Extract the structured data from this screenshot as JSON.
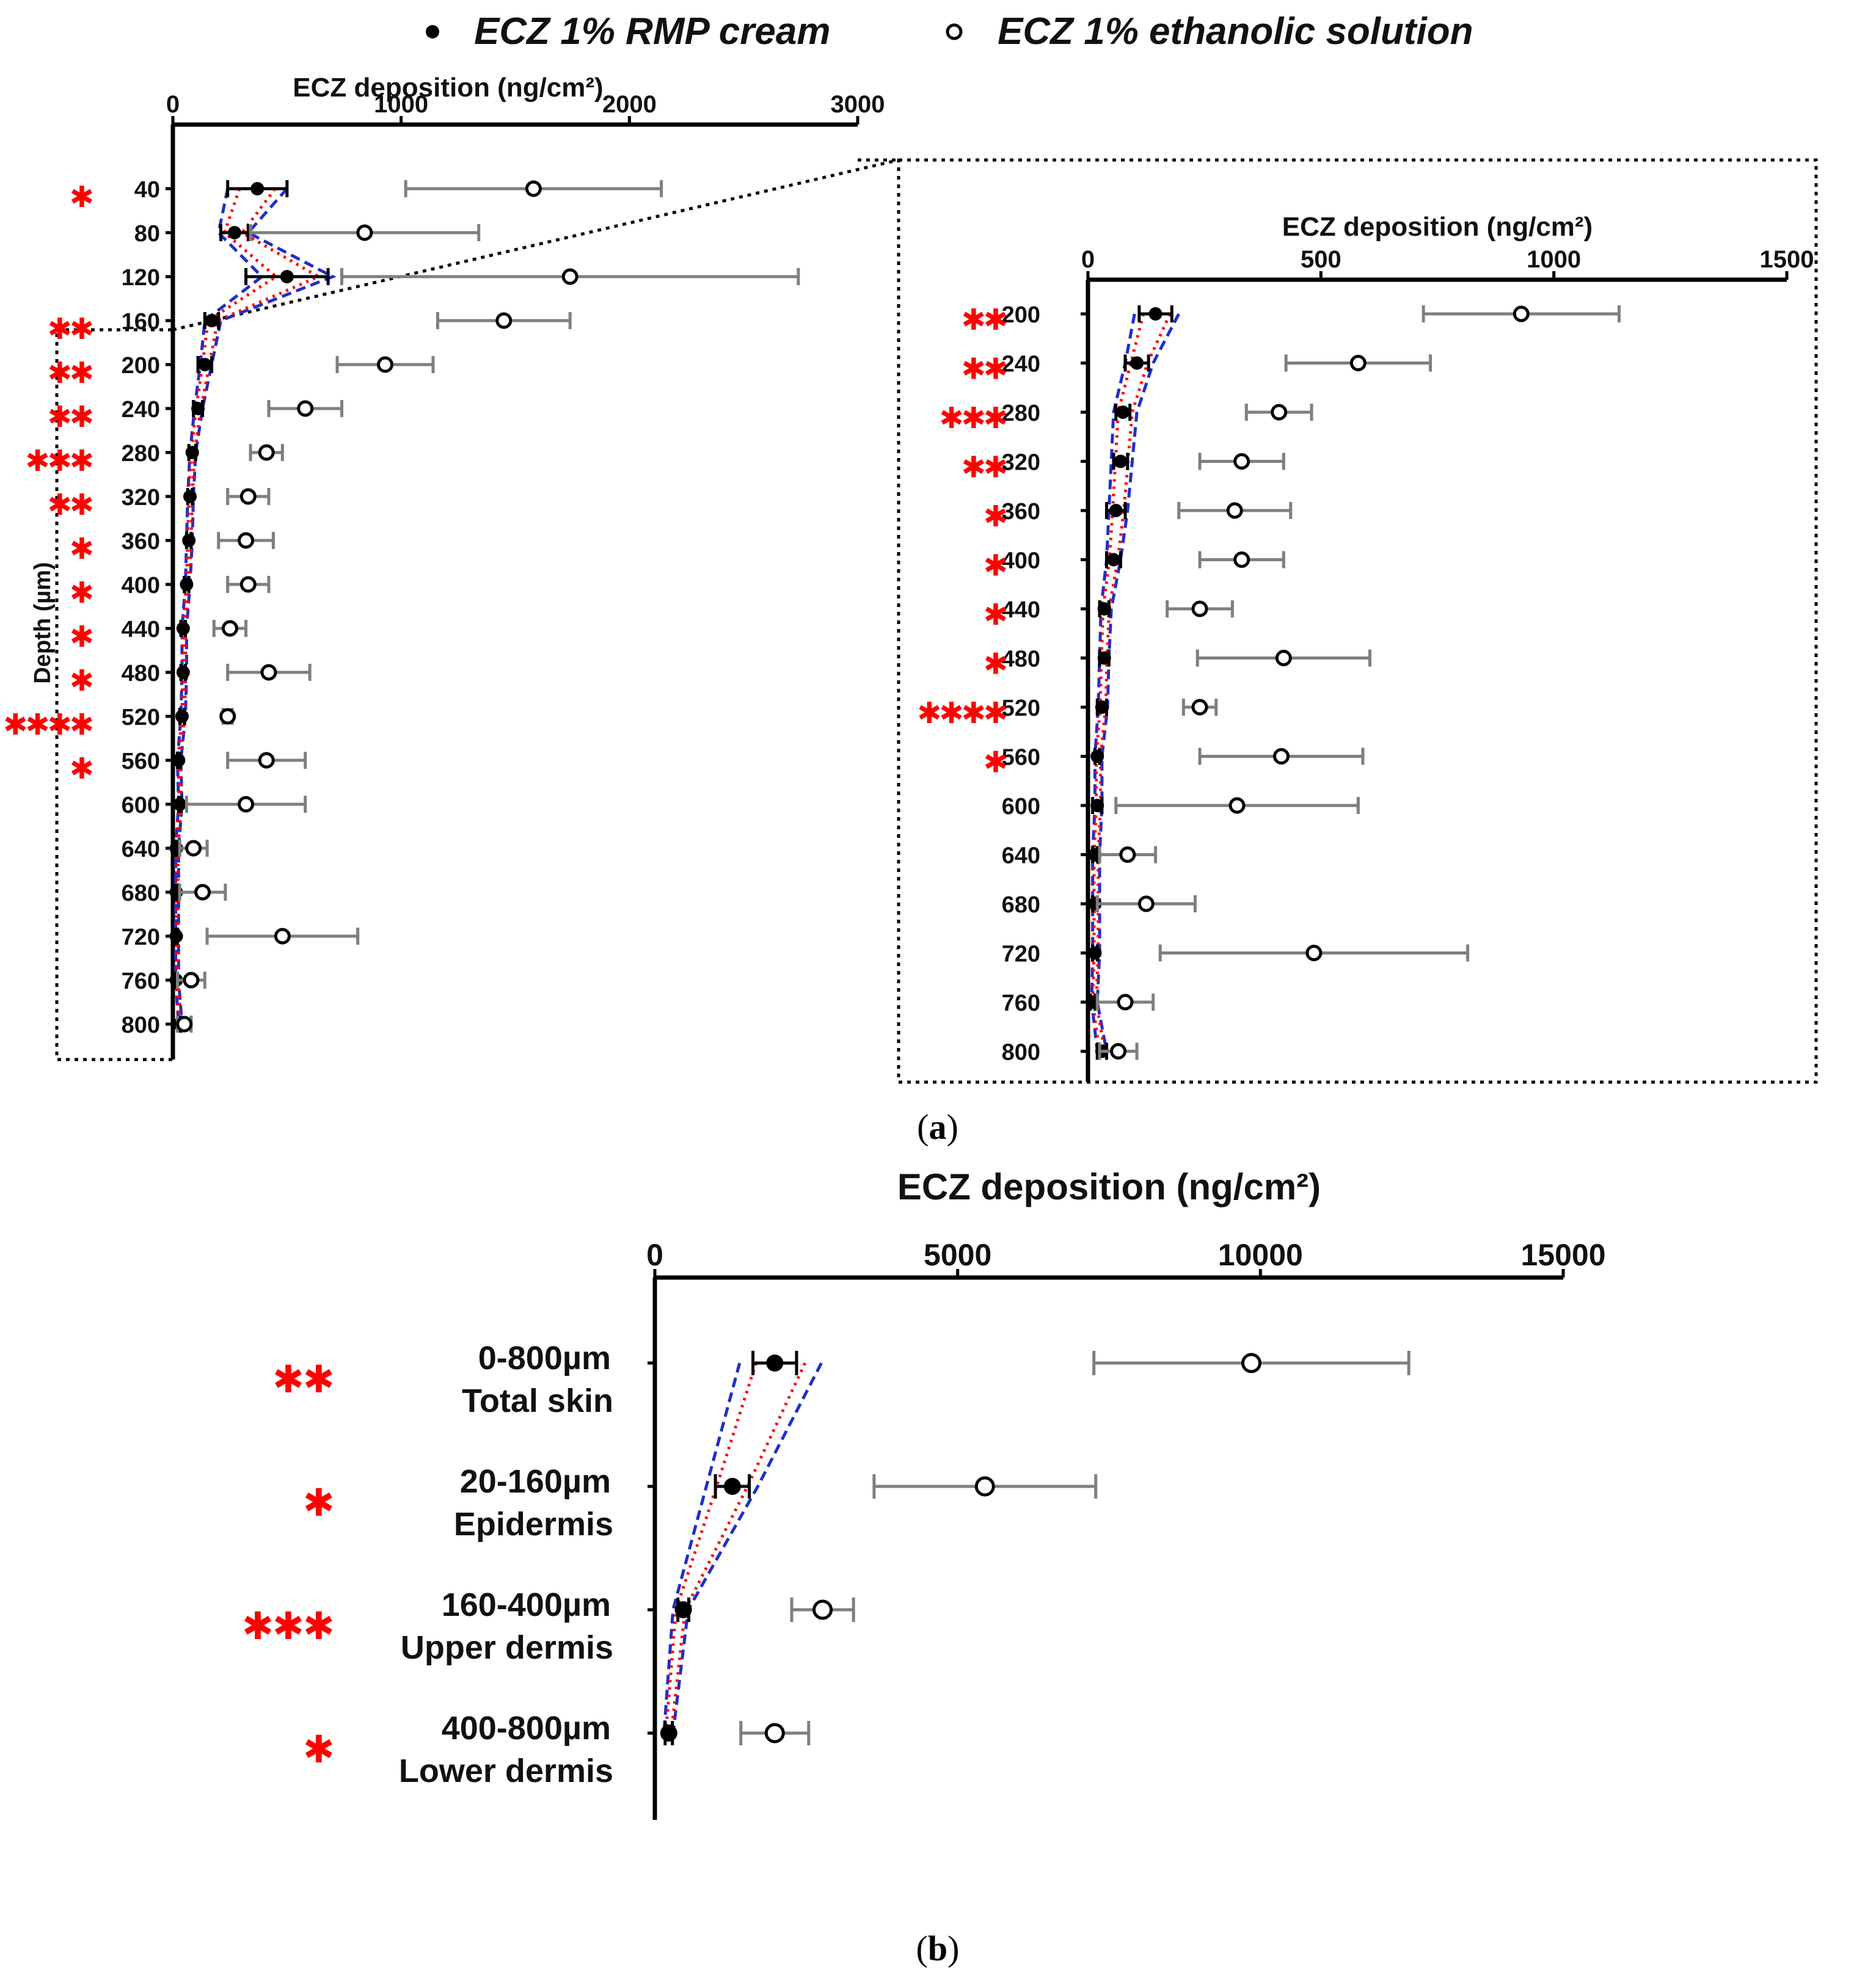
{
  "legend": {
    "items": [
      {
        "label": "ECZ 1% RMP cream",
        "marker": "filled-circle"
      },
      {
        "label": "ECZ 1% ethanolic solution",
        "marker": "open-circle"
      }
    ]
  },
  "panels": {
    "a": {
      "caption_open": "(",
      "caption_letter": "a",
      "caption_close": ")"
    },
    "b": {
      "caption_open": "(",
      "caption_letter": "b",
      "caption_close": ")"
    }
  },
  "colors": {
    "filled": "#000000",
    "open_error": "#7f7f7f",
    "significance": "#ff0000",
    "band_dotted": "#ff0000",
    "band_dashed": "#1f2fc9"
  },
  "chart_data": [
    {
      "id": "a-left",
      "type": "scatter",
      "orientation": "horizontal",
      "xlabel": "ECZ deposition (ng/cm²)",
      "ylabel": "Depth (µm)",
      "xlim": [
        0,
        3000
      ],
      "xticks": [
        "0",
        "1000",
        "2000",
        "3000"
      ],
      "categories": [
        "40",
        "80",
        "120",
        "160",
        "200",
        "240",
        "280",
        "320",
        "360",
        "400",
        "440",
        "480",
        "520",
        "560",
        "600",
        "640",
        "680",
        "720",
        "760",
        "800"
      ],
      "significance": [
        "*",
        "",
        "",
        "**",
        "**",
        "**",
        "***",
        "**",
        "*",
        "*",
        "*",
        "*",
        "****",
        "*",
        "",
        "",
        "",
        "",
        "",
        ""
      ],
      "series": [
        {
          "name": "ECZ 1% RMP cream",
          "values": [
            370,
            270,
            500,
            170,
            140,
            110,
            85,
            75,
            70,
            60,
            45,
            45,
            40,
            25,
            30,
            15,
            15,
            15,
            15,
            30
          ],
          "errors": [
            130,
            60,
            180,
            30,
            30,
            20,
            15,
            10,
            10,
            10,
            10,
            10,
            10,
            5,
            5,
            5,
            5,
            5,
            5,
            5
          ]
        },
        {
          "name": "ECZ 1% ethanolic solution",
          "values": [
            1580,
            840,
            1740,
            1450,
            930,
            580,
            410,
            330,
            320,
            330,
            250,
            420,
            240,
            410,
            320,
            90,
            130,
            480,
            80,
            50
          ],
          "errors": [
            560,
            500,
            1000,
            290,
            210,
            160,
            70,
            90,
            120,
            90,
            70,
            180,
            20,
            170,
            260,
            60,
            100,
            330,
            60,
            30
          ]
        }
      ],
      "band": {
        "lower": [
          240,
          200,
          390,
          140,
          120,
          95,
          75,
          65,
          60,
          55,
          40,
          40,
          35,
          20,
          25,
          12,
          12,
          12,
          12,
          25
        ],
        "upper": [
          500,
          330,
          700,
          210,
          170,
          130,
          100,
          90,
          85,
          75,
          60,
          60,
          55,
          35,
          40,
          25,
          25,
          25,
          25,
          40
        ]
      }
    },
    {
      "id": "a-right",
      "type": "scatter",
      "orientation": "horizontal",
      "xlabel": "ECZ deposition (ng/cm²)",
      "ylabel": "Depth (µm)",
      "xlim": [
        0,
        1500
      ],
      "xticks": [
        "0",
        "500",
        "1000",
        "1500"
      ],
      "categories": [
        "200",
        "240",
        "280",
        "320",
        "360",
        "400",
        "440",
        "480",
        "520",
        "560",
        "600",
        "640",
        "680",
        "720",
        "760",
        "800"
      ],
      "significance": [
        "**",
        "**",
        "***",
        "**",
        "*",
        "*",
        "*",
        "*",
        "****",
        "*",
        "",
        "",
        "",
        "",
        "",
        ""
      ],
      "series": [
        {
          "name": "ECZ 1% RMP cream",
          "values": [
            145,
            105,
            75,
            70,
            60,
            55,
            35,
            35,
            30,
            20,
            20,
            15,
            15,
            15,
            10,
            30
          ],
          "errors": [
            35,
            25,
            15,
            15,
            20,
            15,
            10,
            10,
            10,
            5,
            10,
            5,
            5,
            5,
            5,
            10
          ]
        },
        {
          "name": "ECZ 1% ethanolic solution",
          "values": [
            930,
            580,
            410,
            330,
            315,
            330,
            240,
            420,
            240,
            415,
            320,
            85,
            125,
            485,
            80,
            65
          ],
          "errors": [
            210,
            155,
            70,
            90,
            120,
            90,
            70,
            185,
            35,
            175,
            260,
            60,
            105,
            330,
            60,
            40
          ]
        }
      ],
      "band": {
        "lower": [
          100,
          80,
          55,
          50,
          45,
          40,
          28,
          25,
          22,
          15,
          15,
          10,
          10,
          10,
          8,
          20
        ],
        "upper": [
          195,
          140,
          105,
          95,
          85,
          70,
          50,
          45,
          42,
          30,
          30,
          25,
          25,
          25,
          20,
          40
        ]
      }
    },
    {
      "id": "b",
      "type": "scatter",
      "orientation": "horizontal",
      "xlabel": "ECZ deposition (ng/cm²)",
      "xlim": [
        0,
        15000
      ],
      "xticks": [
        "0",
        "5000",
        "10000",
        "15000"
      ],
      "categories": [
        {
          "range": "0-800µm",
          "name": "Total skin"
        },
        {
          "range": "20-160µm",
          "name": "Epidermis"
        },
        {
          "range": "160-400µm",
          "name": "Upper dermis"
        },
        {
          "range": "400-800µm",
          "name": "Lower dermis"
        }
      ],
      "significance": [
        "**",
        "*",
        "***",
        "*"
      ],
      "series": [
        {
          "name": "ECZ 1% RMP cream",
          "values": [
            1980,
            1280,
            470,
            230
          ],
          "errors": [
            360,
            280,
            90,
            60
          ]
        },
        {
          "name": "ECZ 1% ethanolic solution",
          "values": [
            9850,
            5450,
            2770,
            1980
          ],
          "errors": [
            2600,
            1830,
            510,
            560
          ]
        }
      ],
      "band": {
        "lower": [
          1400,
          850,
          300,
          150
        ],
        "upper": [
          2750,
          1700,
          550,
          300
        ]
      }
    }
  ]
}
